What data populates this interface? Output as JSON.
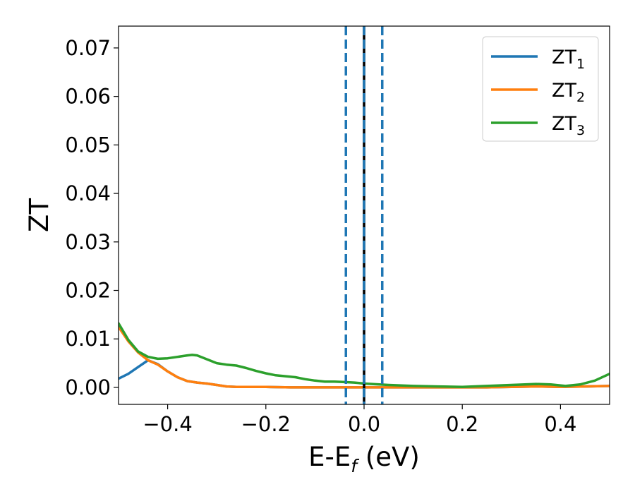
{
  "chart_data": {
    "type": "line",
    "xlabel": "E-E",
    "xlabel_sub": "f",
    "xlabel_unit": " (eV)",
    "ylabel": "ZT",
    "xlim": [
      -0.5,
      0.5
    ],
    "ylim": [
      -0.0035,
      0.0745
    ],
    "xticks": [
      -0.4,
      -0.2,
      0.0,
      0.2,
      0.4
    ],
    "xtick_labels": [
      "−0.4",
      "−0.2",
      "0.0",
      "0.2",
      "0.4"
    ],
    "yticks": [
      0.0,
      0.01,
      0.02,
      0.03,
      0.04,
      0.05,
      0.06,
      0.07
    ],
    "ytick_labels": [
      "0.00",
      "0.01",
      "0.02",
      "0.03",
      "0.04",
      "0.05",
      "0.06",
      "0.07"
    ],
    "grid": false,
    "legend_position": "top-right",
    "series": [
      {
        "name": "ZT",
        "name_sub": "1",
        "color": "#1f77b4",
        "x": [
          -0.5,
          -0.48,
          -0.46,
          -0.44,
          -0.42,
          -0.4,
          -0.38,
          -0.36,
          -0.34,
          -0.32,
          -0.3,
          -0.28,
          -0.26,
          -0.24,
          -0.2,
          -0.15,
          -0.1,
          -0.05,
          0.0,
          0.05,
          0.1,
          0.15,
          0.2,
          0.25,
          0.3,
          0.35,
          0.4,
          0.45,
          0.5
        ],
        "y": [
          0.0018,
          0.0028,
          0.0042,
          0.0056,
          0.0048,
          0.0033,
          0.0021,
          0.0013,
          0.001,
          0.0008,
          0.0005,
          0.0002,
          0.0001,
          0.0001,
          0.0001,
          0.0,
          0.0,
          0.0,
          0.0,
          0.0,
          0.0,
          0.0,
          0.0,
          0.0,
          0.0001,
          0.0002,
          0.0001,
          0.0002,
          0.0003
        ]
      },
      {
        "name": "ZT",
        "name_sub": "2",
        "color": "#ff7f0e",
        "x": [
          -0.5,
          -0.48,
          -0.46,
          -0.44,
          -0.42,
          -0.4,
          -0.38,
          -0.36,
          -0.34,
          -0.32,
          -0.3,
          -0.28,
          -0.26,
          -0.24,
          -0.2,
          -0.15,
          -0.1,
          -0.05,
          0.0,
          0.05,
          0.1,
          0.15,
          0.2,
          0.25,
          0.3,
          0.35,
          0.4,
          0.45,
          0.5
        ],
        "y": [
          0.0125,
          0.0095,
          0.0072,
          0.0056,
          0.0047,
          0.0033,
          0.0021,
          0.0013,
          0.001,
          0.0008,
          0.0005,
          0.0002,
          0.0001,
          0.0001,
          0.0001,
          0.0,
          0.0,
          0.0,
          0.0,
          0.0,
          0.0,
          0.0,
          0.0,
          0.0,
          0.0001,
          0.0002,
          0.0001,
          0.0002,
          0.0003
        ]
      },
      {
        "name": "ZT",
        "name_sub": "3",
        "color": "#2ca02c",
        "x": [
          -0.5,
          -0.48,
          -0.46,
          -0.44,
          -0.42,
          -0.4,
          -0.38,
          -0.36,
          -0.35,
          -0.34,
          -0.32,
          -0.3,
          -0.28,
          -0.26,
          -0.24,
          -0.22,
          -0.2,
          -0.18,
          -0.16,
          -0.14,
          -0.12,
          -0.1,
          -0.08,
          -0.06,
          -0.04,
          -0.02,
          0.0,
          0.05,
          0.1,
          0.15,
          0.2,
          0.25,
          0.3,
          0.35,
          0.38,
          0.41,
          0.44,
          0.47,
          0.5
        ],
        "y": [
          0.0132,
          0.0098,
          0.0074,
          0.0063,
          0.0059,
          0.006,
          0.0063,
          0.0066,
          0.0067,
          0.0066,
          0.0058,
          0.005,
          0.0047,
          0.0045,
          0.004,
          0.0034,
          0.0029,
          0.0025,
          0.0023,
          0.0021,
          0.0017,
          0.0014,
          0.0012,
          0.0012,
          0.0011,
          0.001,
          0.0008,
          0.0005,
          0.0003,
          0.0002,
          0.0001,
          0.0003,
          0.0005,
          0.0007,
          0.0006,
          0.0003,
          0.0006,
          0.0014,
          0.0028
        ]
      }
    ],
    "vlines": [
      {
        "x": 0.0,
        "color": "#000000",
        "style": "solid"
      },
      {
        "x": 0.0,
        "color": "#1f77b4",
        "style": "dashed"
      },
      {
        "x": -0.037,
        "color": "#1f77b4",
        "style": "dashed"
      },
      {
        "x": 0.037,
        "color": "#1f77b4",
        "style": "dashed"
      }
    ]
  }
}
